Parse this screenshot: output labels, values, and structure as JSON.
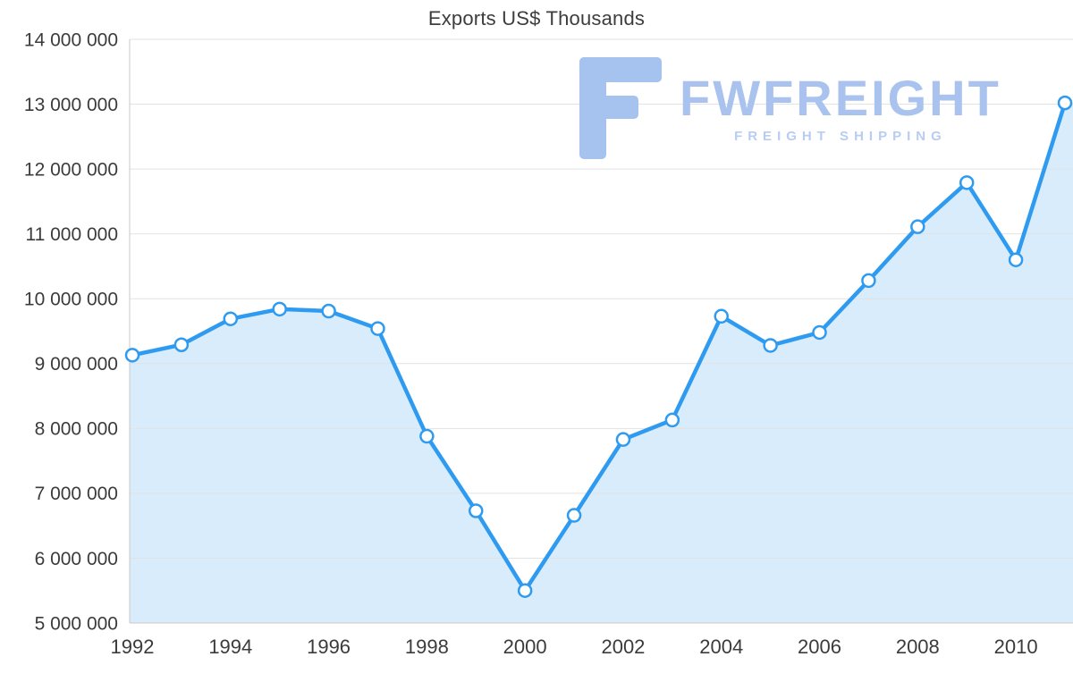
{
  "title": "Exports US$ Thousands",
  "watermark": {
    "brand": "FWFREIGHT",
    "tagline": "FREIGHT SHIPPING",
    "logo_color": "#a6c3ef"
  },
  "chart_data": {
    "type": "line",
    "title": "Exports US$ Thousands",
    "series_name": "Exports US$ Thousands",
    "x": [
      1992,
      1993,
      1994,
      1995,
      1996,
      1997,
      1998,
      1999,
      2000,
      2001,
      2002,
      2003,
      2004,
      2005,
      2006,
      2007,
      2008,
      2009,
      2010,
      2011
    ],
    "values": [
      9130000,
      9290000,
      9690000,
      9840000,
      9810000,
      9540000,
      7880000,
      6730000,
      5500000,
      6660000,
      7830000,
      8130000,
      9730000,
      9280000,
      9480000,
      10280000,
      11110000,
      11790000,
      10600000,
      13020000
    ],
    "ylim": [
      5000000,
      14000000
    ],
    "ytick_step": 1000000,
    "ytick_labels": [
      "5 000 000",
      "6 000 000",
      "7 000 000",
      "8 000 000",
      "9 000 000",
      "10 000 000",
      "11 000 000",
      "12 000 000",
      "13 000 000",
      "14 000 000"
    ],
    "xticks": [
      1992,
      1994,
      1996,
      1998,
      2000,
      2002,
      2004,
      2006,
      2008,
      2010
    ],
    "grid": "horizontal",
    "area_fill": true,
    "legend": "none",
    "colors": {
      "line": "#2e9bf0",
      "area": "#d9ecfc",
      "marker_fill": "#ffffff",
      "marker_stroke": "#2e9bf0",
      "grid": "#e2e2e2",
      "axis": "#c9c9c9",
      "tick_text": "#3b3b3b"
    }
  }
}
